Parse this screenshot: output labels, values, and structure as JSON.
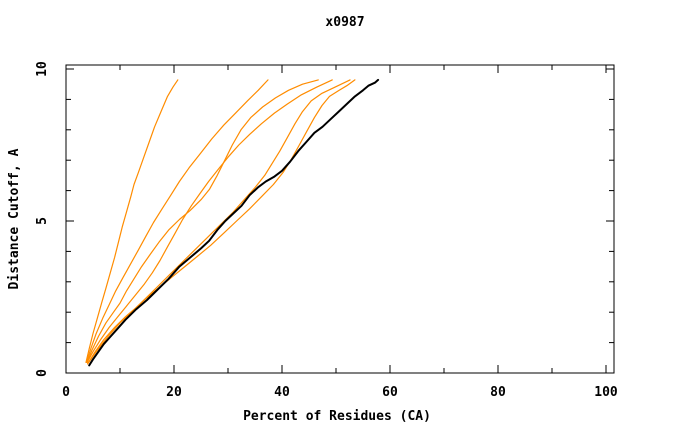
{
  "title": "x0987",
  "chart_data": {
    "type": "line",
    "title": "x0987",
    "xlabel": "Percent of Residues (CA)",
    "ylabel": "Distance Cutoff, A",
    "xlim": [
      0,
      100
    ],
    "ylim": [
      0,
      10
    ],
    "xticks_major": [
      0,
      20,
      40,
      60,
      80,
      100
    ],
    "xticks_minor": [
      10,
      30,
      50,
      70,
      90
    ],
    "yticks_major": [
      0,
      5,
      10
    ],
    "yticks_minor": [
      1,
      2,
      3,
      4,
      6,
      7,
      8,
      9
    ],
    "grid": false,
    "legend": "none",
    "frame_color": "#000000",
    "background": "#ffffff",
    "accent_orange": "#ff8c00",
    "reference_black": "#000000",
    "series": [
      {
        "name": "orange-curve-1",
        "color": "#ff8c00",
        "width": 1.2,
        "points": [
          [
            3.7,
            0.35
          ],
          [
            4.3,
            0.8
          ],
          [
            5,
            1.3
          ],
          [
            5.8,
            1.8
          ],
          [
            6.6,
            2.3
          ],
          [
            7.4,
            2.8
          ],
          [
            8.2,
            3.3
          ],
          [
            9,
            3.8
          ],
          [
            9.7,
            4.3
          ],
          [
            10.4,
            4.8
          ],
          [
            11.2,
            5.3
          ],
          [
            12,
            5.8
          ],
          [
            12.6,
            6.2
          ],
          [
            13.4,
            6.6
          ],
          [
            14.4,
            7.1
          ],
          [
            15.4,
            7.6
          ],
          [
            16.4,
            8.1
          ],
          [
            17.6,
            8.6
          ],
          [
            18.8,
            9.1
          ],
          [
            19.8,
            9.4
          ],
          [
            20.7,
            9.64
          ]
        ]
      },
      {
        "name": "orange-curve-2",
        "color": "#ff8c00",
        "width": 1.2,
        "points": [
          [
            3.8,
            0.35
          ],
          [
            4.6,
            0.8
          ],
          [
            5.6,
            1.3
          ],
          [
            6.8,
            1.8
          ],
          [
            8,
            2.25
          ],
          [
            9.2,
            2.7
          ],
          [
            10.6,
            3.15
          ],
          [
            12,
            3.6
          ],
          [
            13.4,
            4.05
          ],
          [
            14.8,
            4.5
          ],
          [
            16.2,
            4.95
          ],
          [
            17.8,
            5.4
          ],
          [
            19.4,
            5.85
          ],
          [
            21,
            6.3
          ],
          [
            22.8,
            6.75
          ],
          [
            24.8,
            7.2
          ],
          [
            27,
            7.7
          ],
          [
            29.2,
            8.15
          ],
          [
            31.4,
            8.55
          ],
          [
            33.6,
            8.95
          ],
          [
            35.6,
            9.3
          ],
          [
            37.4,
            9.64
          ]
        ]
      },
      {
        "name": "orange-curve-3",
        "color": "#ff8c00",
        "width": 1.2,
        "points": [
          [
            3.9,
            0.35
          ],
          [
            4.8,
            0.75
          ],
          [
            6,
            1.2
          ],
          [
            7.4,
            1.65
          ],
          [
            8.8,
            2.0
          ],
          [
            10,
            2.3
          ],
          [
            11.2,
            2.7
          ],
          [
            12.6,
            3.1
          ],
          [
            14,
            3.5
          ],
          [
            15.6,
            3.9
          ],
          [
            17.2,
            4.3
          ],
          [
            19,
            4.7
          ],
          [
            21,
            5.05
          ],
          [
            23,
            5.35
          ],
          [
            25,
            5.7
          ],
          [
            26.6,
            6.05
          ],
          [
            28,
            6.5
          ],
          [
            29.4,
            7.0
          ],
          [
            30.8,
            7.5
          ],
          [
            32.4,
            8.0
          ],
          [
            34.2,
            8.4
          ],
          [
            36.4,
            8.75
          ],
          [
            38.8,
            9.05
          ],
          [
            41.2,
            9.3
          ],
          [
            43.8,
            9.5
          ],
          [
            46.7,
            9.64
          ]
        ]
      },
      {
        "name": "orange-curve-4",
        "color": "#ff8c00",
        "width": 1.2,
        "points": [
          [
            3.9,
            0.35
          ],
          [
            5,
            0.7
          ],
          [
            6.4,
            1.1
          ],
          [
            8,
            1.5
          ],
          [
            9.6,
            1.85
          ],
          [
            11.2,
            2.2
          ],
          [
            12.8,
            2.55
          ],
          [
            14.4,
            2.9
          ],
          [
            16,
            3.3
          ],
          [
            17.4,
            3.7
          ],
          [
            18.8,
            4.15
          ],
          [
            20.2,
            4.6
          ],
          [
            21.6,
            5.05
          ],
          [
            23.2,
            5.5
          ],
          [
            24.8,
            5.9
          ],
          [
            26.4,
            6.3
          ],
          [
            28.2,
            6.7
          ],
          [
            30,
            7.1
          ],
          [
            32,
            7.5
          ],
          [
            34,
            7.85
          ],
          [
            36.2,
            8.2
          ],
          [
            38.6,
            8.55
          ],
          [
            41,
            8.85
          ],
          [
            43.6,
            9.15
          ],
          [
            46.4,
            9.4
          ],
          [
            49.3,
            9.64
          ]
        ]
      },
      {
        "name": "orange-curve-5",
        "color": "#ff8c00",
        "width": 1.2,
        "points": [
          [
            4,
            0.3
          ],
          [
            5.4,
            0.7
          ],
          [
            7,
            1.1
          ],
          [
            9,
            1.5
          ],
          [
            11,
            1.85
          ],
          [
            13,
            2.15
          ],
          [
            15,
            2.5
          ],
          [
            17,
            2.85
          ],
          [
            19,
            3.2
          ],
          [
            21,
            3.55
          ],
          [
            23,
            3.9
          ],
          [
            25,
            4.25
          ],
          [
            27,
            4.6
          ],
          [
            29,
            4.95
          ],
          [
            31,
            5.3
          ],
          [
            33,
            5.7
          ],
          [
            35,
            6.1
          ],
          [
            36.8,
            6.5
          ],
          [
            38.2,
            6.9
          ],
          [
            39.6,
            7.3
          ],
          [
            41,
            7.75
          ],
          [
            42.4,
            8.2
          ],
          [
            43.8,
            8.6
          ],
          [
            45.4,
            8.95
          ],
          [
            47.4,
            9.2
          ],
          [
            49.8,
            9.4
          ],
          [
            52.6,
            9.64
          ]
        ]
      },
      {
        "name": "orange-curve-6",
        "color": "#ff8c00",
        "width": 1.2,
        "points": [
          [
            4,
            0.3
          ],
          [
            5.8,
            0.75
          ],
          [
            7.8,
            1.2
          ],
          [
            10,
            1.65
          ],
          [
            12.4,
            2.05
          ],
          [
            14.8,
            2.45
          ],
          [
            17.2,
            2.8
          ],
          [
            19.6,
            3.15
          ],
          [
            22,
            3.5
          ],
          [
            24.4,
            3.85
          ],
          [
            26.8,
            4.2
          ],
          [
            29.2,
            4.6
          ],
          [
            31.6,
            5.0
          ],
          [
            34,
            5.4
          ],
          [
            36.2,
            5.8
          ],
          [
            38.4,
            6.2
          ],
          [
            40.2,
            6.6
          ],
          [
            41.8,
            7.05
          ],
          [
            43.2,
            7.5
          ],
          [
            44.6,
            7.95
          ],
          [
            46,
            8.4
          ],
          [
            47.4,
            8.8
          ],
          [
            48.8,
            9.1
          ],
          [
            50.6,
            9.3
          ],
          [
            52,
            9.45
          ],
          [
            53.5,
            9.64
          ]
        ]
      },
      {
        "name": "black-reference-curve",
        "color": "#000000",
        "width": 2,
        "points": [
          [
            4.3,
            0.25
          ],
          [
            5,
            0.45
          ],
          [
            6,
            0.7
          ],
          [
            7,
            0.95
          ],
          [
            8,
            1.15
          ],
          [
            9.5,
            1.45
          ],
          [
            11,
            1.75
          ],
          [
            13,
            2.1
          ],
          [
            15,
            2.4
          ],
          [
            17,
            2.75
          ],
          [
            19,
            3.1
          ],
          [
            21,
            3.5
          ],
          [
            23,
            3.8
          ],
          [
            25,
            4.1
          ],
          [
            26.5,
            4.35
          ],
          [
            28,
            4.7
          ],
          [
            29.5,
            5.0
          ],
          [
            31,
            5.25
          ],
          [
            32.5,
            5.5
          ],
          [
            34,
            5.85
          ],
          [
            35.5,
            6.1
          ],
          [
            37,
            6.3
          ],
          [
            38.5,
            6.45
          ],
          [
            40,
            6.65
          ],
          [
            41.5,
            6.95
          ],
          [
            43,
            7.3
          ],
          [
            44.5,
            7.6
          ],
          [
            46,
            7.9
          ],
          [
            47.5,
            8.1
          ],
          [
            49,
            8.35
          ],
          [
            50.5,
            8.6
          ],
          [
            52,
            8.85
          ],
          [
            53.5,
            9.1
          ],
          [
            55,
            9.3
          ],
          [
            56,
            9.45
          ],
          [
            57.2,
            9.55
          ],
          [
            57.8,
            9.64
          ]
        ]
      }
    ]
  }
}
